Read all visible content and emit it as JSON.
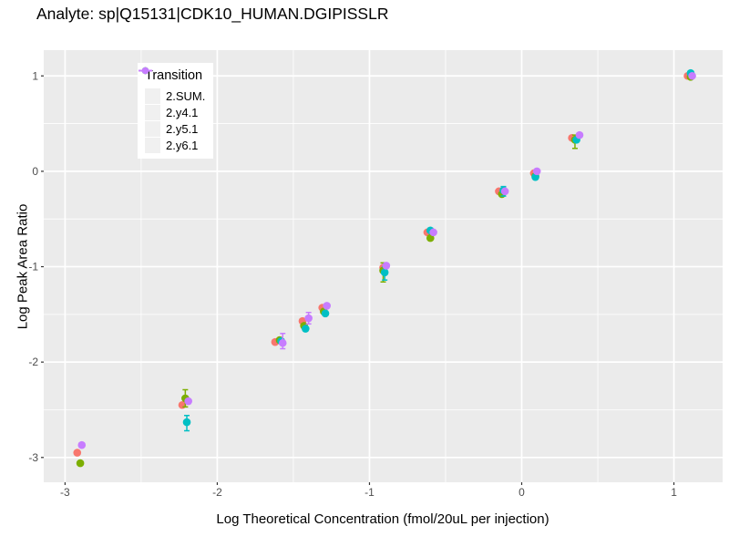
{
  "title": "Analyte: sp|Q15131|CDK10_HUMAN.DGIPISSLR",
  "colors": {
    "figure_bg": "#FFFFFF",
    "panel_bg": "#EBEBEB",
    "grid": "#FFFFFF",
    "tick_mark": "#333333",
    "tick_label": "#4D4D4D",
    "axis_title": "#000000",
    "legend_bg": "#FFFFFF",
    "legend_key_bg": "#F0F0F0"
  },
  "legend": {
    "title": "Transition",
    "entries": [
      {
        "label": "2.SUM.",
        "color": "#F8766D"
      },
      {
        "label": "2.y4.1",
        "color": "#7CAE00"
      },
      {
        "label": "2.y5.1",
        "color": "#00BFC4"
      },
      {
        "label": "2.y6.1",
        "color": "#C77CFF"
      }
    ]
  },
  "chart_data": {
    "type": "scatter",
    "title": "Analyte: sp|Q15131|CDK10_HUMAN.DGIPISSLR",
    "xlabel": "Log Theoretical Concentration (fmol/20uL per injection)",
    "ylabel": "Log Peak Area Ratio",
    "xlim": [
      -3.14,
      1.32
    ],
    "ylim": [
      -3.26,
      1.27
    ],
    "x_ticks": [
      -3,
      -2,
      -1,
      0,
      1
    ],
    "y_ticks": [
      -3,
      -2,
      -1,
      0,
      1
    ],
    "x_minor_ticks": [
      -2.5,
      -1.5,
      -0.5,
      0.5
    ],
    "y_minor_ticks": [
      -2.5,
      -1.5,
      -0.5,
      0.5
    ],
    "grid": "white major and minor gridlines on gray panel",
    "legend_position": "inside top-left",
    "series": [
      {
        "name": "2.SUM.",
        "color": "#F8766D",
        "points": [
          {
            "x": -2.92,
            "y": -2.95
          },
          {
            "x": -2.23,
            "y": -2.45
          },
          {
            "x": -1.62,
            "y": -1.79
          },
          {
            "x": -1.44,
            "y": -1.57
          },
          {
            "x": -1.31,
            "y": -1.43
          },
          {
            "x": -0.91,
            "y": -1.01
          },
          {
            "x": -0.62,
            "y": -0.64
          },
          {
            "x": -0.15,
            "y": -0.21
          },
          {
            "x": 0.08,
            "y": -0.02
          },
          {
            "x": 0.33,
            "y": 0.35
          },
          {
            "x": 1.09,
            "y": 1.0
          }
        ]
      },
      {
        "name": "2.y4.1",
        "color": "#7CAE00",
        "points": [
          {
            "x": -2.9,
            "y": -3.06
          },
          {
            "x": -2.21,
            "y": -2.38,
            "err": [
              -2.29,
              -2.47
            ]
          },
          {
            "x": -1.59,
            "y": -1.77
          },
          {
            "x": -1.43,
            "y": -1.62
          },
          {
            "x": -1.3,
            "y": -1.47
          },
          {
            "x": -0.91,
            "y": -1.04,
            "err": [
              -0.96,
              -1.16
            ]
          },
          {
            "x": -0.6,
            "y": -0.7
          },
          {
            "x": -0.13,
            "y": -0.24
          },
          {
            "x": 0.09,
            "y": -0.05
          },
          {
            "x": 0.35,
            "y": 0.33,
            "err": [
              0.38,
              0.24
            ]
          },
          {
            "x": 1.11,
            "y": 0.99
          }
        ]
      },
      {
        "name": "2.y5.1",
        "color": "#00BFC4",
        "points": [
          {
            "x": -2.2,
            "y": -2.63,
            "err": [
              -2.56,
              -2.72
            ]
          },
          {
            "x": -1.58,
            "y": -1.78
          },
          {
            "x": -1.42,
            "y": -1.65
          },
          {
            "x": -1.29,
            "y": -1.49
          },
          {
            "x": -0.9,
            "y": -1.06,
            "err": [
              -1.0,
              -1.14
            ]
          },
          {
            "x": -0.6,
            "y": -0.62
          },
          {
            "x": -0.12,
            "y": -0.2,
            "err": [
              -0.16,
              -0.26
            ]
          },
          {
            "x": 0.09,
            "y": -0.06
          },
          {
            "x": 0.36,
            "y": 0.33
          },
          {
            "x": 1.11,
            "y": 1.03
          }
        ]
      },
      {
        "name": "2.y6.1",
        "color": "#C77CFF",
        "points": [
          {
            "x": -2.89,
            "y": -2.87
          },
          {
            "x": -2.19,
            "y": -2.41
          },
          {
            "x": -1.57,
            "y": -1.8,
            "err": [
              -1.7,
              -1.86
            ]
          },
          {
            "x": -1.4,
            "y": -1.54,
            "err": [
              -1.48,
              -1.6
            ]
          },
          {
            "x": -1.28,
            "y": -1.41
          },
          {
            "x": -0.89,
            "y": -0.99
          },
          {
            "x": -0.58,
            "y": -0.64
          },
          {
            "x": -0.11,
            "y": -0.21
          },
          {
            "x": 0.1,
            "y": 0.0
          },
          {
            "x": 0.38,
            "y": 0.38
          },
          {
            "x": 1.12,
            "y": 1.0
          }
        ]
      }
    ]
  }
}
